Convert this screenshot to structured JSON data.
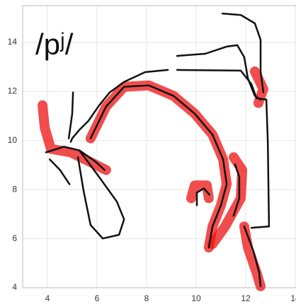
{
  "chart_data": {
    "type": "line",
    "title": "/pʲ/",
    "xlim": [
      3,
      14.1
    ],
    "ylim": [
      4,
      15.5
    ],
    "xticks": [
      4,
      6,
      8,
      10,
      12,
      14
    ],
    "yticks": [
      4,
      6,
      8,
      10,
      12,
      14
    ],
    "grid": true,
    "series": [
      {
        "color": "#ee1111",
        "x": [
          5.74,
          6.37,
          7.09,
          8.09,
          9.09,
          9.94,
          10.66,
          11.09,
          11.23,
          11.0,
          10.66,
          10.51
        ],
        "y": [
          10.09,
          11.39,
          12.19,
          12.25,
          11.82,
          11.1,
          10.24,
          9.23,
          8.22,
          7.36,
          6.5,
          5.64
        ]
      },
      {
        "color": "#ee1111",
        "x": [
          3.8,
          3.89,
          4.14,
          4.94,
          5.8,
          6.37
        ],
        "y": [
          11.44,
          10.52,
          9.66,
          9.52,
          9.09,
          8.8
        ]
      },
      {
        "color": "#ee1111",
        "x": [
          9.8,
          9.94,
          10.43,
          10.51
        ],
        "y": [
          7.65,
          8.17,
          8.17,
          7.65
        ]
      },
      {
        "color": "#ee1111",
        "x": [
          11.51,
          11.86,
          11.8,
          11.17,
          10.66
        ],
        "y": [
          9.32,
          8.8,
          7.65,
          6.5,
          5.78
        ]
      },
      {
        "color": "#ee1111",
        "x": [
          11.94,
          12.09,
          12.43,
          12.6
        ],
        "y": [
          6.5,
          5.64,
          4.63,
          4.06
        ]
      },
      {
        "color": "#ee1111",
        "x": [
          12.37,
          12.71,
          12.51
        ],
        "y": [
          12.82,
          12.1,
          11.53
        ]
      },
      {
        "color": "#111111",
        "x": [
          8.86,
          7.94,
          7.09,
          6.51,
          6.09,
          5.66,
          5.29,
          5.0,
          4.94
        ],
        "y": [
          12.88,
          12.79,
          12.39,
          11.96,
          11.44,
          10.81,
          10.44,
          10.09,
          9.95
        ]
      },
      {
        "color": "#111111",
        "x": [
          5.03,
          5.0,
          4.86
        ],
        "y": [
          11.96,
          11.1,
          10.09
        ]
      },
      {
        "color": "#111111",
        "x": [
          9.23,
          11.8,
          12.23,
          12.43,
          12.83,
          12.89,
          12.94,
          12.23
        ],
        "y": [
          12.88,
          12.85,
          12.3,
          11.73,
          11.67,
          9.95,
          6.5,
          6.44
        ]
      },
      {
        "color": "#111111",
        "x": [
          9.23,
          10.37,
          11.23,
          11.66,
          11.94,
          12.09,
          12.37,
          12.6
        ],
        "y": [
          13.45,
          13.54,
          13.83,
          13.89,
          13.4,
          12.53,
          11.82,
          11.67
        ]
      },
      {
        "color": "#111111",
        "x": [
          11.06,
          11.8,
          12.37,
          12.6,
          12.6,
          12.71
        ],
        "y": [
          15.18,
          15.12,
          14.78,
          14.11,
          12.82,
          11.96
        ]
      },
      {
        "color": "#111111",
        "x": [
          5.74,
          6.37,
          7.09,
          8.09,
          9.09,
          9.94,
          10.66,
          11.09,
          11.23,
          11.0,
          10.66,
          10.51
        ],
        "y": [
          10.09,
          11.39,
          12.19,
          12.25,
          11.82,
          11.1,
          10.24,
          9.23,
          8.22,
          7.36,
          6.5,
          5.64
        ]
      },
      {
        "color": "#111111",
        "x": [
          11.57,
          11.74,
          11.74,
          11.51
        ],
        "y": [
          9.03,
          8.51,
          7.65,
          6.93
        ]
      },
      {
        "color": "#111111",
        "x": [
          5.29,
          6.09,
          6.8,
          7.09,
          6.89,
          6.23,
          5.74,
          5.46,
          5.23
        ],
        "y": [
          9.6,
          8.51,
          7.51,
          6.79,
          6.16,
          6.01,
          6.56,
          7.94,
          9.32
        ]
      },
      {
        "color": "#111111",
        "x": [
          3.94,
          4.66,
          5.29,
          5.94,
          6.31
        ],
        "y": [
          9.52,
          9.75,
          9.6,
          9.14,
          8.8
        ]
      },
      {
        "color": "#111111",
        "x": [
          4.09,
          4.51,
          4.89
        ],
        "y": [
          9.23,
          8.8,
          8.22
        ]
      },
      {
        "color": "#111111",
        "x": [
          10.03,
          10.03,
          10.31,
          10.54
        ],
        "y": [
          7.36,
          7.88,
          8.05,
          7.79
        ]
      },
      {
        "color": "#111111",
        "x": [
          11.94,
          12.31,
          12.54,
          12.6
        ],
        "y": [
          6.5,
          5.49,
          4.63,
          4.06
        ]
      }
    ]
  }
}
